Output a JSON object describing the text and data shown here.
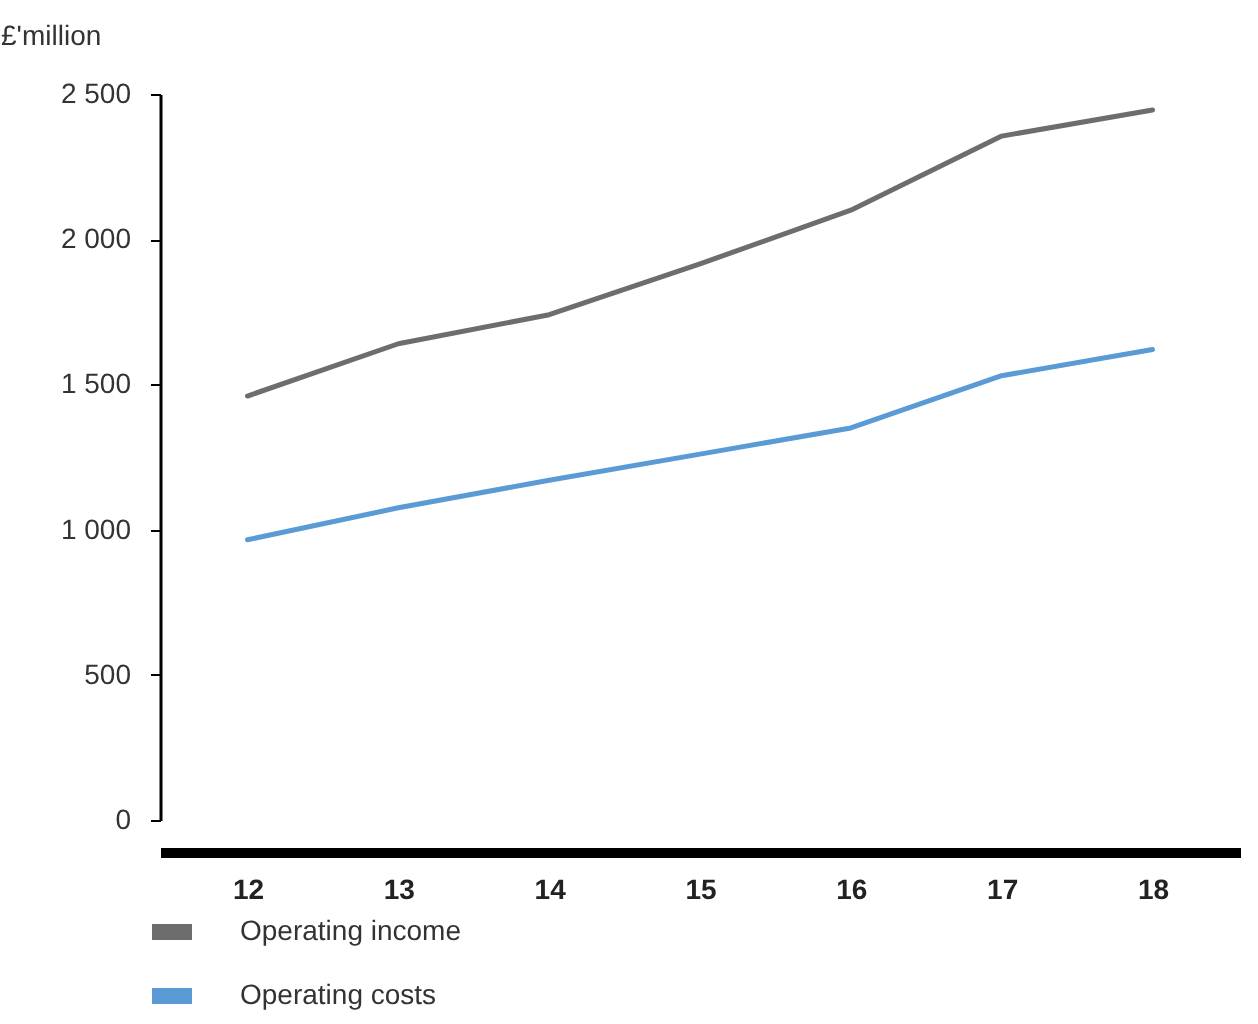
{
  "chart_data": {
    "type": "line",
    "ylabel": "£'million",
    "categories": [
      "12",
      "13",
      "14",
      "15",
      "16",
      "17",
      "18"
    ],
    "series": [
      {
        "name": "Operating income",
        "color": "#6d6d6d",
        "values": [
          1460,
          1640,
          1740,
          1915,
          2100,
          2355,
          2445
        ]
      },
      {
        "name": "Operating costs",
        "color": "#5b9bd5",
        "values": [
          965,
          1075,
          1170,
          1260,
          1350,
          1530,
          1620
        ]
      }
    ],
    "ylim": [
      0,
      2500
    ],
    "yticks": [
      {
        "value": 0,
        "label": "0"
      },
      {
        "value": 500,
        "label": "500"
      },
      {
        "value": 1000,
        "label": "1 000"
      },
      {
        "value": 1500,
        "label": "1 500"
      },
      {
        "value": 2000,
        "label": "2 000"
      },
      {
        "value": 2500,
        "label": "2 500"
      }
    ],
    "grid": false,
    "legend": "bottom left",
    "marker": "none",
    "line_style": "solid"
  }
}
